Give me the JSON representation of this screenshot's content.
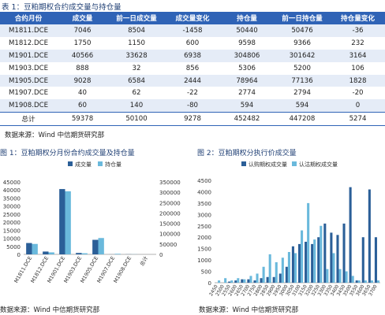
{
  "table": {
    "title": "表 1：豆粕期权合约成交量与持仓量",
    "headers": [
      "合约月份",
      "成交量",
      "前一日成交量",
      "成交量变化",
      "持仓量",
      "前一日持仓量",
      "持仓量变化"
    ],
    "rows": [
      [
        "M1811.DCE",
        "7046",
        "8504",
        "-1458",
        "50440",
        "50476",
        "-36"
      ],
      [
        "M1812.DCE",
        "1750",
        "1150",
        "600",
        "9598",
        "9366",
        "232"
      ],
      [
        "M1901.DCE",
        "40566",
        "33628",
        "6938",
        "304806",
        "301642",
        "3164"
      ],
      [
        "M1903.DCE",
        "888",
        "32",
        "856",
        "5306",
        "5200",
        "106"
      ],
      [
        "M1905.DCE",
        "9028",
        "6584",
        "2444",
        "78964",
        "77136",
        "1828"
      ],
      [
        "M1907.DCE",
        "40",
        "62",
        "-22",
        "2774",
        "2794",
        "-20"
      ],
      [
        "M1908.DCE",
        "60",
        "140",
        "-80",
        "594",
        "594",
        "0"
      ]
    ],
    "total": [
      "总计",
      "59378",
      "50100",
      "9278",
      "452482",
      "447208",
      "5274"
    ],
    "source": "数据来源：Wind 中信期货研究部"
  },
  "figure1": {
    "title": "图 1：豆粕期权分月份合约成交量及持仓量",
    "source": "数据来源：Wind 中信期货研究部"
  },
  "figure2": {
    "title": "图 2：豆粕期权分执行价成交量",
    "source": "数据来源：Wind 中信期货研究部"
  },
  "colors": {
    "header_bg": "#2f63b6",
    "stripe": "#e5ecf7",
    "series_a": "#2b5f98",
    "series_b": "#6ab9dc",
    "title": "#1f3f74"
  },
  "chart_data": [
    {
      "type": "bar",
      "categories": [
        "M1811.DCE",
        "M1812.DCE",
        "M1901.DCE",
        "M1903.DCE",
        "M1905.DCE",
        "M1907.DCE",
        "M1908.DCE",
        "总计"
      ],
      "series": [
        {
          "name": "成交量",
          "axis": "left",
          "values": [
            7046,
            1750,
            40566,
            888,
            9028,
            40,
            60,
            0
          ]
        },
        {
          "name": "持仓量",
          "axis": "right",
          "values": [
            50440,
            9598,
            304806,
            5306,
            78964,
            2774,
            594,
            0
          ]
        }
      ],
      "ylim": [
        0,
        45000
      ],
      "yticks": [
        0,
        5000,
        10000,
        15000,
        20000,
        25000,
        30000,
        35000,
        40000,
        45000
      ],
      "y2lim": [
        0,
        350000
      ],
      "y2ticks": [
        0,
        50000,
        100000,
        150000,
        200000,
        250000,
        300000,
        350000
      ],
      "legend": "top"
    },
    {
      "type": "bar",
      "categories": [
        "2450",
        "2500",
        "2550",
        "2600",
        "2650",
        "2700",
        "2750",
        "2800",
        "2850",
        "2900",
        "2950",
        "3000",
        "3050",
        "3100",
        "3150",
        "3200",
        "3250",
        "3300",
        "3350",
        "3400",
        "3450",
        "3500",
        "3550",
        "3600",
        "3650",
        "3700"
      ],
      "series": [
        {
          "name": "认购期权成交量",
          "values": [
            0,
            0,
            50,
            100,
            150,
            150,
            100,
            200,
            250,
            250,
            400,
            700,
            1600,
            1700,
            1800,
            1700,
            2000,
            2600,
            2200,
            2100,
            2600,
            4200,
            100,
            2000,
            4100,
            2000
          ]
        },
        {
          "name": "认沽期权成交量",
          "values": [
            100,
            200,
            100,
            200,
            150,
            300,
            400,
            700,
            1250,
            900,
            1100,
            1350,
            1300,
            2300,
            3500,
            1900,
            2500,
            600,
            1300,
            600,
            500,
            300,
            100,
            100,
            100,
            100
          ]
        }
      ],
      "ylim": [
        0,
        4500
      ],
      "yticks": [
        0,
        500,
        1000,
        1500,
        2000,
        2500,
        3000,
        3500,
        4000,
        4500
      ],
      "legend": "top"
    }
  ]
}
